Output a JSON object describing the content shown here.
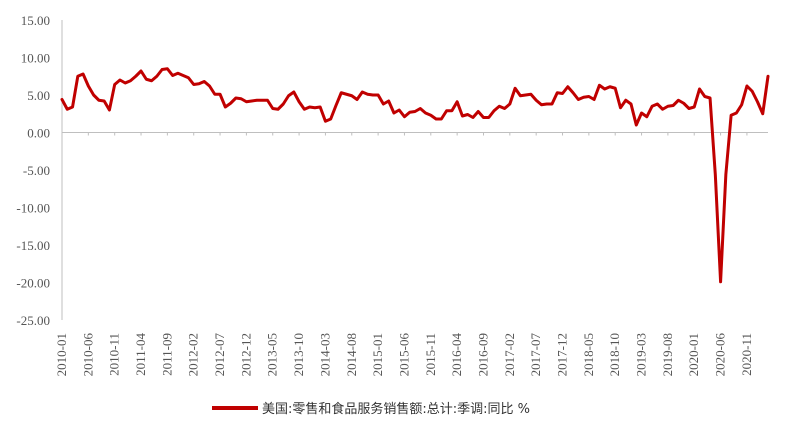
{
  "chart_data": {
    "type": "line",
    "title": "",
    "xlabel": "",
    "ylabel": "",
    "ylim": [
      -25,
      15
    ],
    "yticks": [
      "15.00",
      "10.00",
      "5.00",
      "0.00",
      "-5.00",
      "-10.00",
      "-15.00",
      "-20.00",
      "-25.00"
    ],
    "ytick_values": [
      15,
      10,
      5,
      0,
      -5,
      -10,
      -15,
      -20,
      -25
    ],
    "xtick_labels": [
      "2010-01",
      "2010-06",
      "2010-11",
      "2011-04",
      "2011-09",
      "2012-02",
      "2012-07",
      "2012-12",
      "2013-05",
      "2013-10",
      "2014-03",
      "2014-08",
      "2015-01",
      "2015-06",
      "2015-11",
      "2016-04",
      "2016-09",
      "2017-02",
      "2017-07",
      "2017-12",
      "2018-05",
      "2018-10",
      "2019-03",
      "2019-08",
      "2020-01",
      "2020-06",
      "2020-11"
    ],
    "x_start": "2010-01",
    "x_end": "2021-03",
    "grid": false,
    "legend_position": "bottom",
    "series": [
      {
        "name": "美国:零售和食品服务销售额:总计:季调:同比 %",
        "color": "#C00000",
        "values": [
          4.4,
          3.1,
          3.4,
          7.5,
          7.8,
          6.2,
          5.0,
          4.3,
          4.2,
          3.0,
          6.4,
          7.0,
          6.6,
          6.9,
          7.5,
          8.2,
          7.1,
          6.9,
          7.5,
          8.4,
          8.5,
          7.6,
          7.9,
          7.6,
          7.3,
          6.4,
          6.5,
          6.8,
          6.2,
          5.1,
          5.1,
          3.4,
          3.9,
          4.6,
          4.5,
          4.1,
          4.2,
          4.3,
          4.3,
          4.3,
          3.2,
          3.1,
          3.8,
          4.9,
          5.4,
          4.1,
          3.1,
          3.4,
          3.3,
          3.4,
          1.5,
          1.8,
          3.6,
          5.3,
          5.1,
          4.9,
          4.4,
          5.4,
          5.1,
          5.0,
          5.0,
          3.8,
          4.2,
          2.6,
          3.0,
          2.1,
          2.7,
          2.8,
          3.2,
          2.6,
          2.3,
          1.8,
          1.8,
          2.9,
          2.9,
          4.1,
          2.2,
          2.4,
          2.0,
          2.8,
          2.0,
          2.0,
          2.9,
          3.5,
          3.2,
          3.8,
          5.9,
          4.9,
          5.0,
          5.1,
          4.3,
          3.7,
          3.8,
          3.8,
          5.3,
          5.2,
          6.1,
          5.3,
          4.4,
          4.7,
          4.8,
          4.4,
          6.3,
          5.8,
          6.1,
          5.9,
          3.3,
          4.3,
          3.8,
          1.0,
          2.6,
          2.1,
          3.5,
          3.8,
          3.1,
          3.5,
          3.6,
          4.3,
          3.9,
          3.2,
          3.4,
          5.8,
          4.8,
          4.6,
          -5.6,
          -19.9,
          -5.6,
          2.3,
          2.6,
          3.7,
          6.2,
          5.5,
          4.1,
          2.5,
          7.5
        ]
      }
    ]
  }
}
